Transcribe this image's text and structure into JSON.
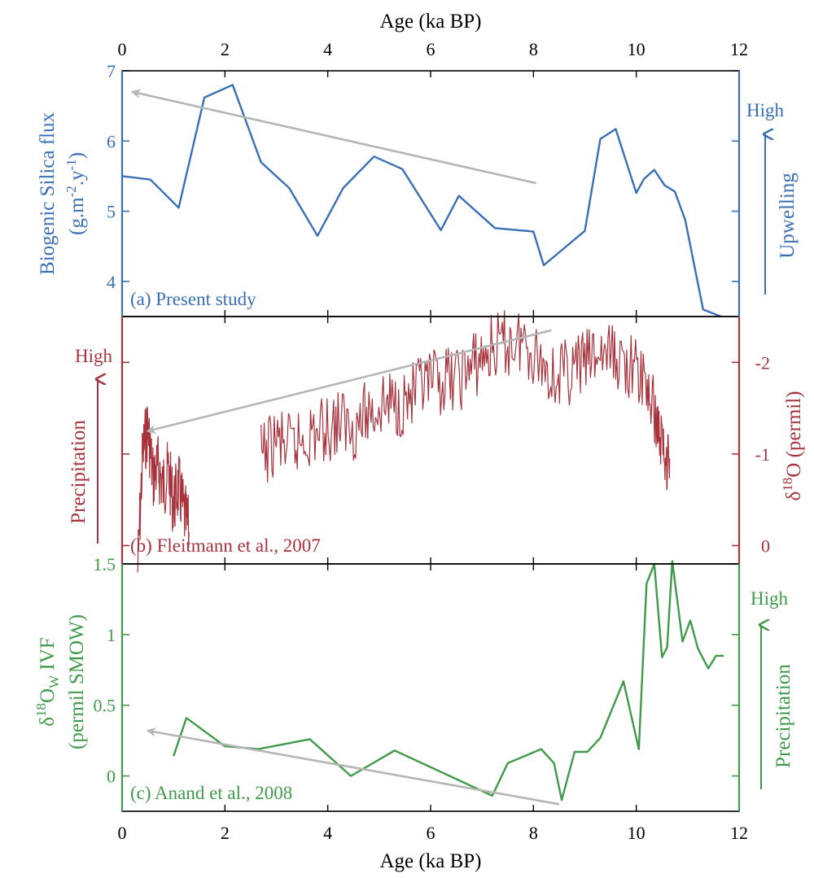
{
  "chart_data": {
    "type": "line",
    "x_axis": {
      "label": "Age (ka BP)",
      "range": [
        0,
        12
      ],
      "ticks": [
        0,
        2,
        4,
        6,
        8,
        10,
        12
      ],
      "shared": true,
      "labels_on": [
        "top",
        "bottom"
      ]
    },
    "panels": [
      {
        "id": "a",
        "annotation": "(a) Present study",
        "color": "#3a6fb5",
        "ylabel_line1": "Biogenic Silica flux",
        "ylabel_line2": "(g.m-2.y-1)",
        "y_axis_side": "left",
        "ylim": [
          3.5,
          7
        ],
        "yticks": [
          4,
          5,
          6,
          7
        ],
        "secondary_label": "Upwelling",
        "secondary_high": "High",
        "trend_arrow": {
          "from": [
            8.05,
            5.4
          ],
          "to": [
            0.2,
            6.7
          ]
        },
        "series": [
          {
            "x": [
              0.0,
              0.55,
              1.1,
              1.6,
              2.15,
              2.7,
              3.25,
              3.8,
              4.3,
              4.9,
              5.45,
              6.2,
              6.55,
              7.25,
              8.0,
              8.2,
              9.0,
              9.3,
              9.6,
              10.0,
              10.15,
              10.35,
              10.55,
              10.75,
              10.95,
              11.3,
              11.65
            ],
            "y": [
              5.5,
              5.45,
              5.05,
              6.62,
              6.8,
              5.7,
              5.33,
              4.65,
              5.33,
              5.78,
              5.6,
              4.73,
              5.22,
              4.76,
              4.71,
              4.23,
              4.72,
              6.03,
              6.17,
              5.26,
              5.46,
              5.59,
              5.37,
              5.28,
              4.88,
              3.6,
              3.5
            ]
          }
        ]
      },
      {
        "id": "b",
        "annotation": "(b) Fleitmann et al., 2007",
        "color": "#a8333d",
        "ylabel": "δ18O (permil)",
        "y_axis_side": "right",
        "ylim": [
          0.2,
          -2.5
        ],
        "yticks": [
          0,
          -1,
          -2
        ],
        "ytick_labels": [
          "0",
          "-1",
          "-2"
        ],
        "secondary_label": "Precipitation",
        "secondary_high": "High",
        "trend_arrow": {
          "from": [
            8.35,
            -2.35
          ],
          "to": [
            0.5,
            -1.25
          ]
        },
        "series": [
          {
            "segments": [
              {
                "x": [
                  0.3,
                  0.4,
                  0.5,
                  0.6,
                  0.7,
                  0.8,
                  0.9,
                  1.0,
                  1.1,
                  1.2,
                  1.3
                ],
                "y": [
                  0.3,
                  -1.0,
                  -1.3,
                  -0.75,
                  -0.85,
                  -0.65,
                  -0.8,
                  -0.45,
                  -0.65,
                  -0.35,
                  -0.15
                ]
              },
              {
                "x": [
                  2.7,
                  3.0,
                  3.3,
                  3.6,
                  3.9,
                  4.2,
                  4.5,
                  4.8,
                  5.1,
                  5.4,
                  5.7,
                  6.0,
                  6.3,
                  6.6,
                  6.9,
                  7.2,
                  7.5,
                  7.8,
                  8.1,
                  8.4,
                  8.7,
                  9.0,
                  9.3,
                  9.6,
                  9.9,
                  10.2,
                  10.4,
                  10.55,
                  10.65
                ],
                "y": [
                  -0.95,
                  -1.15,
                  -1.05,
                  -1.2,
                  -1.25,
                  -1.35,
                  -1.3,
                  -1.45,
                  -1.55,
                  -1.55,
                  -1.65,
                  -1.75,
                  -1.8,
                  -1.85,
                  -2.0,
                  -2.15,
                  -2.2,
                  -2.25,
                  -2.05,
                  -1.85,
                  -1.9,
                  -2.0,
                  -2.1,
                  -2.05,
                  -1.95,
                  -1.75,
                  -1.35,
                  -1.0,
                  -0.95
                ]
              }
            ]
          }
        ]
      },
      {
        "id": "c",
        "annotation": "(c) Anand et al., 2008",
        "color": "#3f9a4a",
        "ylabel_line1": "δ18Ow IVF",
        "ylabel_line2": "(permil SMOW)",
        "y_axis_side": "left",
        "ylim": [
          -0.25,
          1.5
        ],
        "yticks": [
          0,
          0.5,
          1,
          1.5
        ],
        "ytick_labels": [
          "0",
          "0.5",
          "1",
          "1.5"
        ],
        "secondary_label": "Precipitation",
        "secondary_high": "High",
        "trend_arrow": {
          "from": [
            8.5,
            -0.2
          ],
          "to": [
            0.5,
            0.32
          ]
        },
        "series": [
          {
            "x": [
              1.0,
              1.25,
              2.0,
              2.65,
              3.65,
              4.45,
              5.3,
              7.2,
              7.5,
              8.15,
              8.4,
              8.55,
              8.8,
              9.05,
              9.3,
              9.75,
              10.05,
              10.2,
              10.35,
              10.5,
              10.6,
              10.7,
              10.9,
              11.05,
              11.2,
              11.4,
              11.55,
              11.7
            ],
            "y": [
              0.14,
              0.41,
              0.21,
              0.19,
              0.26,
              0.0,
              0.18,
              -0.14,
              0.09,
              0.19,
              0.09,
              -0.17,
              0.17,
              0.17,
              0.27,
              0.67,
              0.19,
              1.36,
              1.5,
              0.84,
              0.91,
              1.52,
              0.95,
              1.1,
              0.9,
              0.76,
              0.85,
              0.85
            ]
          }
        ]
      }
    ]
  }
}
